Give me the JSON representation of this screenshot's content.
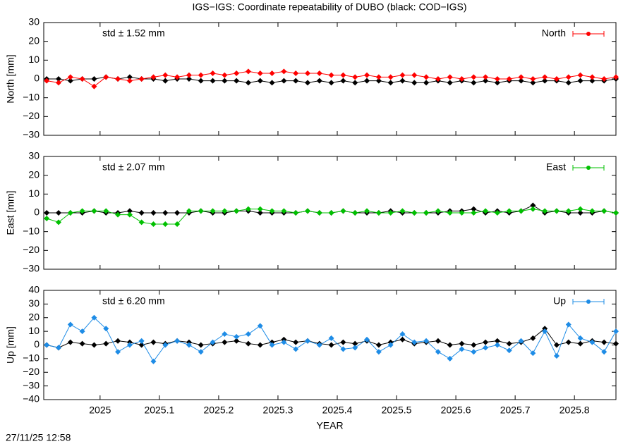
{
  "footer": "27/11/25 12:58",
  "chart_data": [
    {
      "type": "line",
      "title": "IGS−IGS: Coordinate repeatability of DUBO (black: COD−IGS)",
      "ylabel": "North [mm]",
      "annotation": "std ± 1.52 mm",
      "x": [
        2024.91,
        2024.93,
        2024.95,
        2024.97,
        2024.99,
        2025.01,
        2025.03,
        2025.05,
        2025.07,
        2025.09,
        2025.11,
        2025.13,
        2025.15,
        2025.17,
        2025.19,
        2025.21,
        2025.23,
        2025.25,
        2025.27,
        2025.29,
        2025.31,
        2025.33,
        2025.35,
        2025.37,
        2025.39,
        2025.41,
        2025.43,
        2025.45,
        2025.47,
        2025.49,
        2025.51,
        2025.53,
        2025.55,
        2025.57,
        2025.59,
        2025.61,
        2025.63,
        2025.65,
        2025.67,
        2025.69,
        2025.71,
        2025.73,
        2025.75,
        2025.77,
        2025.79,
        2025.81,
        2025.83,
        2025.85,
        2025.87
      ],
      "series": [
        {
          "color": "#000000",
          "values": [
            0,
            0,
            -1,
            0,
            0,
            1,
            0,
            1,
            0,
            0,
            -1,
            0,
            0,
            -1,
            -1,
            -1,
            -1,
            -2,
            -1,
            -2,
            -1,
            -1,
            -2,
            -1,
            -2,
            -1,
            -2,
            -1,
            -1,
            -2,
            -1,
            -2,
            -2,
            -1,
            -2,
            -1,
            -2,
            -1,
            -2,
            -1,
            -1,
            -2,
            -1,
            -1,
            -2,
            -1,
            -1,
            -1,
            0
          ]
        },
        {
          "name": "North",
          "color": "#ff0000",
          "values": [
            -1,
            -2,
            1,
            0,
            -4,
            1,
            0,
            -1,
            0,
            1,
            2,
            1,
            2,
            2,
            3,
            2,
            3,
            4,
            3,
            3,
            4,
            3,
            3,
            3,
            2,
            2,
            1,
            2,
            1,
            1,
            2,
            2,
            1,
            0,
            1,
            0,
            1,
            1,
            0,
            0,
            1,
            0,
            1,
            0,
            1,
            2,
            1,
            0,
            1
          ]
        }
      ],
      "xlim": [
        2024.905,
        2025.87
      ],
      "xticks": [
        2025,
        2025.1,
        2025.2,
        2025.3,
        2025.4,
        2025.5,
        2025.6,
        2025.7,
        2025.8
      ],
      "ylim": [
        -30,
        30
      ],
      "yticks": [
        {
          "value": -30,
          "label": "−30"
        },
        {
          "value": -20,
          "label": "−20"
        },
        {
          "value": -10,
          "label": "−10"
        },
        0,
        10,
        20,
        30
      ]
    },
    {
      "type": "line",
      "ylabel": "East [mm]",
      "annotation": "std ± 2.07 mm",
      "x": [
        2024.91,
        2024.93,
        2024.95,
        2024.97,
        2024.99,
        2025.01,
        2025.03,
        2025.05,
        2025.07,
        2025.09,
        2025.11,
        2025.13,
        2025.15,
        2025.17,
        2025.19,
        2025.21,
        2025.23,
        2025.25,
        2025.27,
        2025.29,
        2025.31,
        2025.33,
        2025.35,
        2025.37,
        2025.39,
        2025.41,
        2025.43,
        2025.45,
        2025.47,
        2025.49,
        2025.51,
        2025.53,
        2025.55,
        2025.57,
        2025.59,
        2025.61,
        2025.63,
        2025.65,
        2025.67,
        2025.69,
        2025.71,
        2025.73,
        2025.75,
        2025.77,
        2025.79,
        2025.81,
        2025.83,
        2025.85,
        2025.87
      ],
      "series": [
        {
          "color": "#000000",
          "values": [
            0,
            0,
            0,
            0,
            1,
            0,
            0,
            1,
            0,
            0,
            0,
            0,
            0,
            1,
            0,
            0,
            1,
            1,
            0,
            0,
            0,
            0,
            1,
            0,
            0,
            1,
            0,
            0,
            0,
            1,
            0,
            0,
            0,
            0,
            1,
            1,
            2,
            0,
            1,
            0,
            1,
            4,
            0,
            1,
            0,
            0,
            0,
            1,
            0
          ]
        },
        {
          "name": "East",
          "color": "#00c000",
          "values": [
            -3,
            -5,
            0,
            1,
            1,
            1,
            -1,
            -1,
            -5,
            -6,
            -6,
            -6,
            1,
            1,
            1,
            1,
            1,
            2,
            2,
            1,
            1,
            0,
            1,
            0,
            0,
            1,
            0,
            1,
            0,
            0,
            1,
            0,
            0,
            1,
            0,
            0,
            0,
            1,
            0,
            1,
            1,
            2,
            1,
            1,
            1,
            2,
            1,
            1,
            0
          ]
        }
      ],
      "xlim": [
        2024.905,
        2025.87
      ],
      "xticks": [
        2025,
        2025.1,
        2025.2,
        2025.3,
        2025.4,
        2025.5,
        2025.6,
        2025.7,
        2025.8
      ],
      "ylim": [
        -30,
        30
      ],
      "yticks": [
        {
          "value": -30,
          "label": "−30"
        },
        {
          "value": -20,
          "label": "−20"
        },
        {
          "value": -10,
          "label": "−10"
        },
        0,
        10,
        20,
        30
      ]
    },
    {
      "type": "line",
      "ylabel": "Up [mm]",
      "xlabel": "YEAR",
      "annotation": "std ± 6.20 mm",
      "x": [
        2024.91,
        2024.93,
        2024.95,
        2024.97,
        2024.99,
        2025.01,
        2025.03,
        2025.05,
        2025.07,
        2025.09,
        2025.11,
        2025.13,
        2025.15,
        2025.17,
        2025.19,
        2025.21,
        2025.23,
        2025.25,
        2025.27,
        2025.29,
        2025.31,
        2025.33,
        2025.35,
        2025.37,
        2025.39,
        2025.41,
        2025.43,
        2025.45,
        2025.47,
        2025.49,
        2025.51,
        2025.53,
        2025.55,
        2025.57,
        2025.59,
        2025.61,
        2025.63,
        2025.65,
        2025.67,
        2025.69,
        2025.71,
        2025.73,
        2025.75,
        2025.77,
        2025.79,
        2025.81,
        2025.83,
        2025.85,
        2025.87
      ],
      "series": [
        {
          "color": "#000000",
          "values": [
            0,
            -2,
            2,
            1,
            0,
            1,
            3,
            2,
            0,
            2,
            1,
            3,
            2,
            0,
            1,
            2,
            3,
            1,
            0,
            2,
            4,
            2,
            3,
            1,
            0,
            2,
            1,
            3,
            0,
            2,
            4,
            1,
            2,
            3,
            0,
            1,
            0,
            2,
            3,
            1,
            2,
            5,
            12,
            0,
            2,
            1,
            3,
            2,
            1
          ]
        },
        {
          "name": "Up",
          "color": "#1e8ce6",
          "values": [
            0,
            -2,
            15,
            10,
            20,
            12,
            -5,
            0,
            3,
            -12,
            0,
            3,
            0,
            -5,
            2,
            8,
            6,
            8,
            14,
            0,
            2,
            -3,
            3,
            0,
            5,
            -3,
            -2,
            4,
            -5,
            0,
            8,
            2,
            3,
            -5,
            -10,
            -3,
            -5,
            -2,
            0,
            -4,
            3,
            -6,
            10,
            -8,
            15,
            5,
            2,
            -5,
            10
          ]
        }
      ],
      "xlim": [
        2024.905,
        2025.87
      ],
      "xticks": [
        2025,
        2025.1,
        2025.2,
        2025.3,
        2025.4,
        2025.5,
        2025.6,
        2025.7,
        2025.8
      ],
      "ylim": [
        -40,
        40
      ],
      "yticks": [
        {
          "value": -40,
          "label": "−40"
        },
        {
          "value": -30,
          "label": "−30"
        },
        {
          "value": -20,
          "label": "−20"
        },
        {
          "value": -10,
          "label": "−10"
        },
        0,
        10,
        20,
        30,
        40
      ]
    }
  ]
}
